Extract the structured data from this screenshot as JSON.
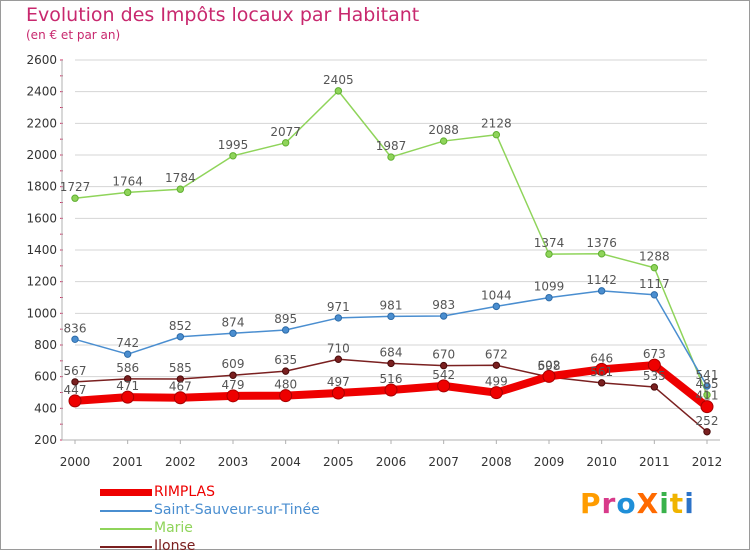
{
  "header": {
    "title": "Evolution des Impôts locaux par Habitant",
    "subtitle": "(en € et par an)"
  },
  "brand": {
    "logo_text": "ProXiti",
    "letters": [
      "P",
      "r",
      "o",
      "X",
      "i",
      "t",
      "i"
    ],
    "letter_colors": [
      "#ff9c00",
      "#d83a8a",
      "#1f8fd8",
      "#ff6a00",
      "#39b24b",
      "#f0b400",
      "#2c73c8"
    ]
  },
  "colors": {
    "title": "#c8286e",
    "axis_text": "#333333",
    "value_text": "#555555",
    "grid": "#d4d4d4",
    "axis": "#b0b0b0"
  },
  "chart_data": {
    "type": "line",
    "title": "Evolution des Impôts locaux par Habitant",
    "subtitle": "(en € et par an)",
    "xlabel": "",
    "ylabel": "",
    "x": [
      "2000",
      "2001",
      "2002",
      "2003",
      "2004",
      "2005",
      "2006",
      "2007",
      "2008",
      "2009",
      "2010",
      "2011",
      "2012"
    ],
    "ylim": [
      200,
      2600
    ],
    "yticks": [
      200,
      400,
      600,
      800,
      1000,
      1200,
      1400,
      1600,
      1800,
      2000,
      2200,
      2400,
      2600
    ],
    "grid": "horizontal",
    "legend_position": "bottom-left",
    "series": [
      {
        "name": "Marie",
        "color": "#8fd45a",
        "values": [
          1727,
          1764,
          1784,
          1995,
          2077,
          2405,
          1987,
          2088,
          2128,
          1374,
          1376,
          1288,
          485
        ],
        "labels": [
          "1727",
          "1764",
          "1784",
          "1995",
          "2077",
          "2405",
          "1987",
          "2088",
          "2128",
          "1374",
          "1376",
          "1288",
          "485"
        ]
      },
      {
        "name": "Saint-Sauveur-sur-Tinée",
        "color": "#4a8ed0",
        "values": [
          836,
          742,
          852,
          874,
          895,
          971,
          981,
          983,
          1044,
          1099,
          1142,
          1117,
          541
        ],
        "labels": [
          "836",
          "742",
          "852",
          "874",
          "895",
          "971",
          "981",
          "983",
          "1044",
          "1099",
          "1142",
          "1117",
          "541"
        ]
      },
      {
        "name": "Ilonse",
        "color": "#7a2020",
        "values": [
          567,
          586,
          585,
          609,
          635,
          710,
          684,
          670,
          672,
          598,
          561,
          535,
          252
        ],
        "labels": [
          "567",
          "586",
          "585",
          "609",
          "635",
          "710",
          "684",
          "670",
          "672",
          "598",
          "561",
          "535",
          "252"
        ]
      },
      {
        "name": "RIMPLAS",
        "color": "#ee0000",
        "values": [
          447,
          471,
          467,
          479,
          480,
          497,
          516,
          542,
          499,
          602,
          646,
          673,
          411
        ],
        "labels": [
          "447",
          "471",
          "467",
          "479",
          "480",
          "497",
          "516",
          "542",
          "499",
          "602",
          "646",
          "673",
          "411"
        ]
      }
    ],
    "legend": [
      "RIMPLAS",
      "Saint-Sauveur-sur-Tinée",
      "Marie",
      "Ilonse"
    ]
  }
}
